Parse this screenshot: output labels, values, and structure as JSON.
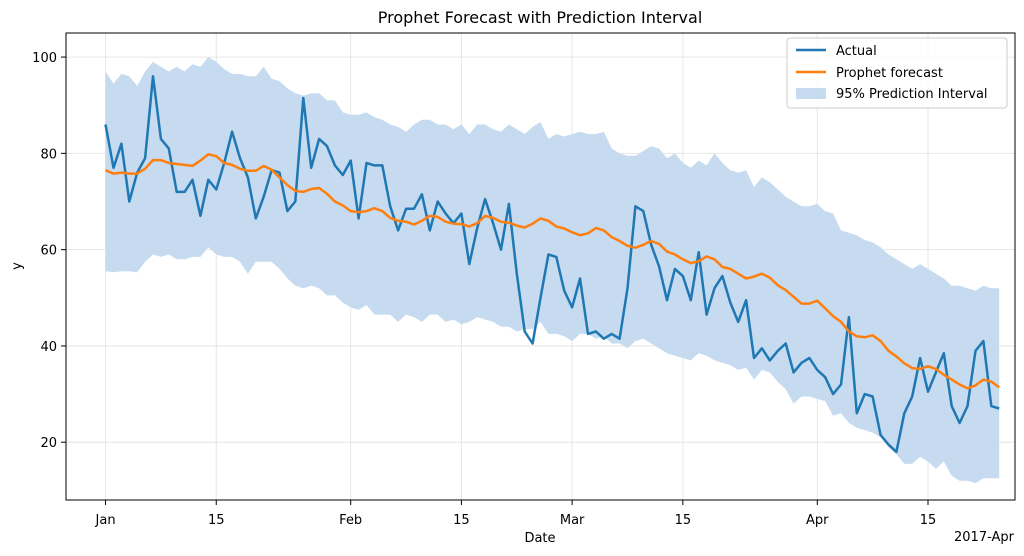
{
  "chart_data": {
    "type": "line",
    "title": "Prophet Forecast with Prediction Interval",
    "xlabel": "Date",
    "ylabel": "y",
    "ylim": [
      8,
      105
    ],
    "xlim": [
      -5,
      115
    ],
    "grid": true,
    "legend_position": "top-right",
    "x_ticks": [
      {
        "x": 0,
        "label": "Jan"
      },
      {
        "x": 14,
        "label": "15"
      },
      {
        "x": 31,
        "label": "Feb"
      },
      {
        "x": 45,
        "label": "15"
      },
      {
        "x": 59,
        "label": "Mar"
      },
      {
        "x": 73,
        "label": "15"
      },
      {
        "x": 90,
        "label": "Apr"
      },
      {
        "x": 104,
        "label": "15"
      }
    ],
    "x_offset_label": "2017-Apr",
    "y_ticks": [
      20,
      40,
      60,
      80,
      100
    ],
    "legend": {
      "actual": "Actual",
      "forecast": "Prophet forecast",
      "interval": "95% Prediction Interval"
    },
    "colors": {
      "actual": "#1f77b4",
      "forecast": "#ff7f0e",
      "interval": "#c6dbef",
      "grid": "#e6e6e6"
    },
    "series": [
      {
        "name": "Actual",
        "values": [
          86,
          77,
          82,
          70,
          76,
          79,
          96,
          83,
          81,
          72,
          72,
          74.5,
          67,
          74.5,
          72.5,
          78,
          84.5,
          79,
          75,
          66.5,
          71,
          76.5,
          76,
          68,
          70,
          91.5,
          77,
          83,
          81.5,
          77.5,
          75.5,
          78.5,
          66.5,
          78,
          77.5,
          77.5,
          69,
          64,
          68.5,
          68.5,
          71.5,
          64,
          70,
          67.5,
          65.5,
          67.5,
          57,
          64.5,
          70.5,
          65.5,
          60,
          69.5,
          55,
          43,
          40.5,
          50,
          59,
          58.5,
          51.5,
          48,
          54,
          42.5,
          43,
          41.5,
          42.5,
          41.5,
          52,
          69,
          68,
          61,
          56.5,
          49.5,
          56,
          54.5,
          49.5,
          59.5,
          46.5,
          52,
          54.5,
          49,
          45,
          49.5,
          37.5,
          39.5,
          37,
          39,
          40.5,
          34.5,
          36.5,
          37.5,
          35,
          33.5,
          30,
          32,
          46,
          26,
          30,
          29.5,
          21.5,
          19.5,
          18,
          26,
          29.5,
          37.5,
          30.5,
          34.5,
          38.5,
          27.5,
          24,
          27.5,
          39,
          41,
          27.5,
          27
        ]
      },
      {
        "name": "Prophet forecast",
        "values": [
          76.5,
          75.8,
          76,
          75.8,
          75.8,
          76.8,
          78.6,
          78.6,
          78,
          77.8,
          77.6,
          77.4,
          78.5,
          79.8,
          79.4,
          78,
          77.6,
          76.8,
          76.4,
          76.4,
          77.4,
          76.6,
          75,
          73.4,
          72.2,
          72,
          72.6,
          72.8,
          71.6,
          70,
          69.2,
          68,
          67.8,
          68,
          68.6,
          68,
          66.6,
          66,
          65.8,
          65.2,
          66,
          67,
          66.8,
          65.8,
          65.4,
          65.3,
          64.8,
          65.5,
          67,
          66.6,
          65.8,
          65.6,
          65,
          64.6,
          65.4,
          66.5,
          66,
          64.8,
          64.4,
          63.6,
          63,
          63.4,
          64.5,
          64,
          62.6,
          61.8,
          60.8,
          60.4,
          61,
          61.8,
          61.2,
          59.6,
          59,
          58,
          57.2,
          57.6,
          58.6,
          58,
          56.4,
          56,
          55,
          54,
          54.4,
          55,
          54.2,
          52.6,
          51.6,
          50.2,
          48.8,
          48.8,
          49.4,
          47.8,
          46.2,
          45,
          43,
          42,
          41.8,
          42.2,
          41,
          39,
          37.8,
          36.4,
          35.4,
          35.2,
          35.8,
          35.2,
          34,
          33,
          32,
          31.2,
          31.8,
          33,
          32.6,
          31.4
        ]
      },
      {
        "name": "95% Prediction Interval (upper)",
        "values": [
          97,
          94.5,
          96.5,
          96,
          94,
          97,
          99,
          98,
          97,
          98,
          97,
          98.5,
          98,
          100,
          99,
          97.5,
          96.5,
          96.5,
          96,
          96,
          98,
          95.5,
          95,
          93.5,
          92.5,
          92,
          92.5,
          92.5,
          91,
          91,
          88.5,
          88,
          88,
          88.5,
          87.5,
          87,
          86,
          85.5,
          84.5,
          86,
          87,
          87,
          86,
          86,
          85,
          86,
          84,
          86,
          86,
          85,
          84.5,
          86,
          85,
          84,
          85.5,
          86.5,
          83,
          84,
          83.5,
          84,
          84.5,
          84,
          84,
          84.5,
          81,
          80,
          79.5,
          79.5,
          80.5,
          81.5,
          81,
          79,
          80,
          78,
          77,
          78.5,
          77.5,
          80,
          78,
          76.5,
          76,
          76.5,
          73,
          75,
          74,
          72.5,
          71,
          70,
          69,
          69,
          69.5,
          68,
          67.5,
          64,
          63.5,
          63,
          62,
          61.5,
          60.5,
          59,
          58,
          57,
          56,
          57,
          56,
          55,
          54,
          52.5,
          52.5,
          52,
          51.5,
          52.5,
          52,
          52
        ]
      },
      {
        "name": "95% Prediction Interval (lower)",
        "values": [
          55.5,
          55.3,
          55.5,
          55.5,
          55.3,
          57.5,
          59,
          58.5,
          59,
          58,
          58,
          58.5,
          58.5,
          60.5,
          59,
          58.5,
          58.5,
          57.5,
          55,
          57.5,
          57.5,
          57.5,
          56,
          54,
          52.5,
          52,
          52.5,
          52,
          50.5,
          50.5,
          49,
          48,
          47.5,
          48.5,
          46.5,
          46.5,
          46.5,
          45,
          46.5,
          46,
          45,
          46.5,
          46.5,
          45,
          45.5,
          44.5,
          45,
          46,
          45.5,
          45,
          44,
          44,
          43,
          43.5,
          43.5,
          45,
          42.5,
          42.5,
          42,
          41,
          42.5,
          42.5,
          41.5,
          42,
          40.5,
          40.5,
          39.5,
          41,
          41.5,
          40.5,
          39.5,
          38.5,
          38,
          37.5,
          37,
          38.5,
          38,
          37,
          36.5,
          36,
          35,
          35.5,
          33,
          35,
          34.5,
          32.5,
          31,
          28,
          29.5,
          29.5,
          29,
          28.5,
          25.5,
          26,
          24,
          23,
          22.5,
          22,
          21,
          19,
          17.5,
          15.5,
          15.5,
          17,
          16,
          14.5,
          16,
          13,
          12,
          12,
          11.5,
          12.5,
          12.5,
          12.5
        ]
      }
    ]
  }
}
